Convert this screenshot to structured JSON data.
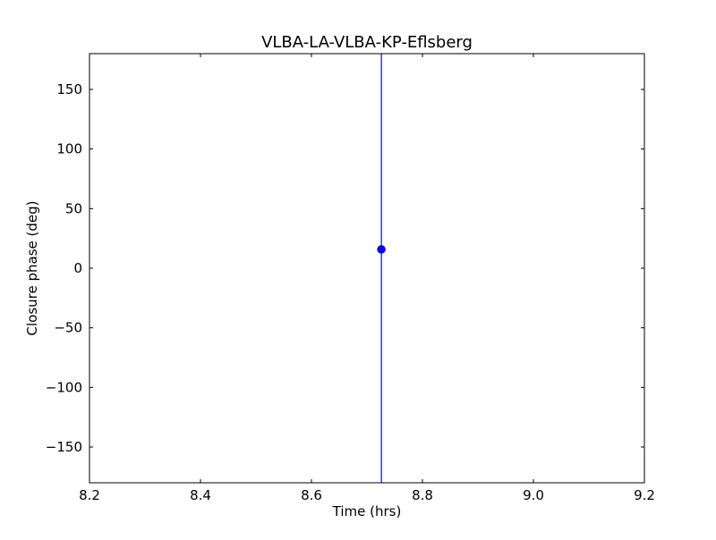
{
  "chart_data": {
    "type": "scatter",
    "title": "VLBA-LA-VLBA-KP-Eflsberg",
    "xlabel": "Time (hrs)",
    "ylabel": "Closure phase (deg)",
    "xlim": [
      8.2,
      9.2
    ],
    "ylim": [
      -180,
      180
    ],
    "xticks": [
      8.2,
      8.4,
      8.6,
      8.8,
      9.0,
      9.2
    ],
    "xtick_labels": [
      "8.2",
      "8.4",
      "8.6",
      "8.8",
      "9.0",
      "9.2"
    ],
    "yticks": [
      -150,
      -100,
      -50,
      0,
      50,
      100,
      150
    ],
    "ytick_labels": [
      "−150",
      "−100",
      "−50",
      "0",
      "50",
      "100",
      "150"
    ],
    "grid": false,
    "color": "#0000ff",
    "points": [
      {
        "x": 8.726,
        "y": 15.8,
        "yerr_low": -180,
        "yerr_high": 180
      }
    ]
  }
}
